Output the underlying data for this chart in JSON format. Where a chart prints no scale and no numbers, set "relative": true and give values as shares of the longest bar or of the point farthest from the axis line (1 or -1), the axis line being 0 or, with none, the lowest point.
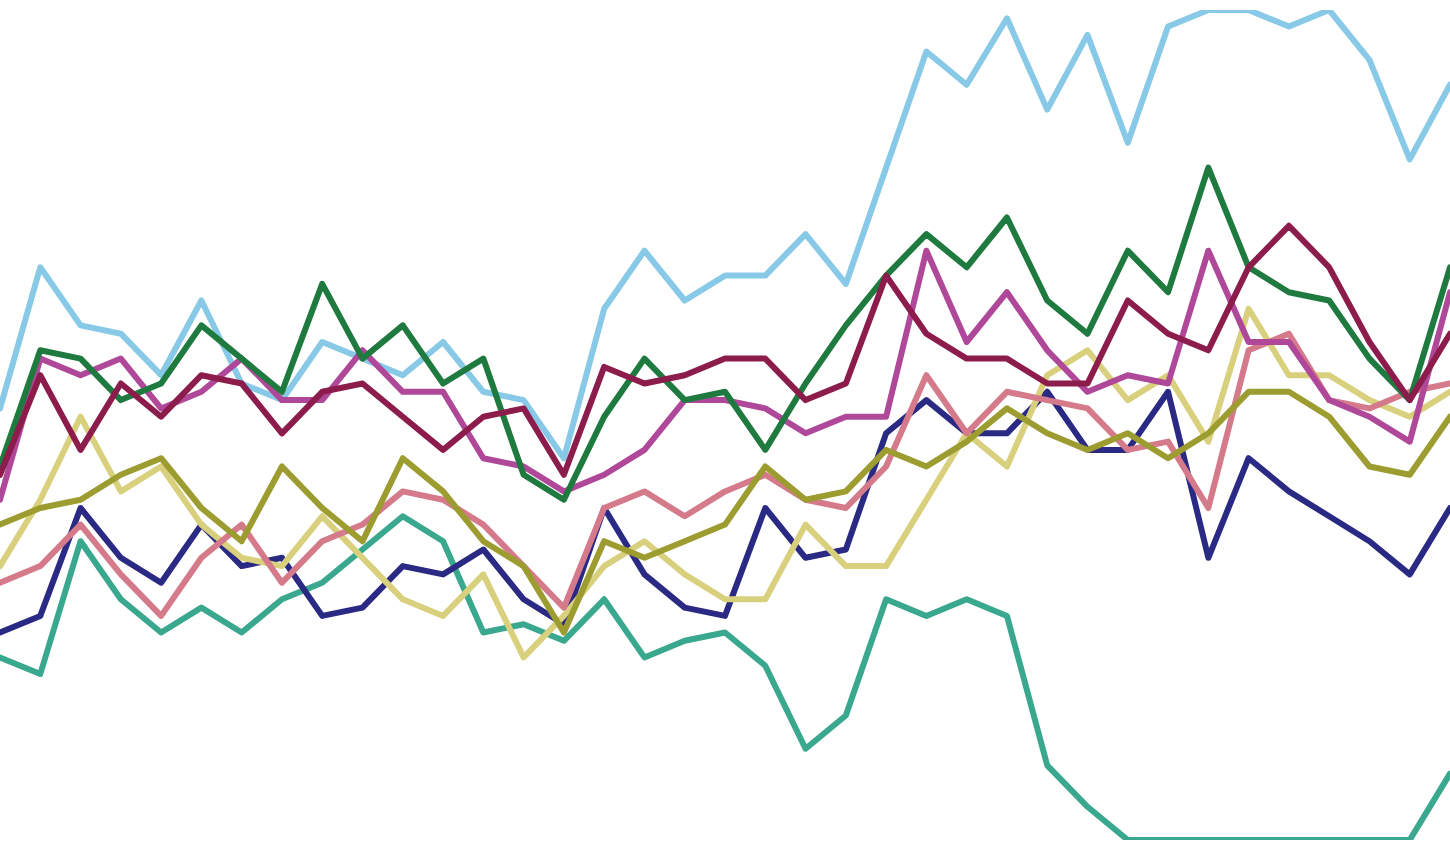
{
  "chart_data": {
    "type": "line",
    "relative": true,
    "categories": [
      null,
      null,
      null,
      null,
      null,
      null,
      null,
      null,
      null,
      null,
      null,
      null,
      null,
      null,
      null,
      null,
      null,
      null,
      null,
      null,
      null,
      null,
      null,
      null,
      null,
      null,
      null,
      null,
      null,
      null,
      null,
      null,
      null,
      null,
      null,
      null,
      null
    ],
    "series": [
      {
        "color": "#3aa88e",
        "values": [
          0.22,
          0.2,
          0.36,
          0.29,
          0.25,
          0.28,
          0.25,
          0.29,
          0.31,
          0.35,
          0.39,
          0.36,
          0.25,
          0.26,
          0.24,
          0.29,
          0.22,
          0.24,
          0.25,
          0.21,
          0.11,
          0.15,
          0.29,
          0.27,
          0.29,
          0.27,
          0.09,
          0.04,
          0,
          0,
          0,
          0,
          0,
          0,
          0,
          0,
          0.08
        ]
      },
      {
        "color": "#87c9e6",
        "values": [
          0.52,
          0.69,
          0.62,
          0.61,
          0.56,
          0.65,
          0.55,
          0.53,
          0.6,
          0.58,
          0.56,
          0.6,
          0.54,
          0.53,
          0.46,
          0.64,
          0.71,
          0.65,
          0.68,
          0.68,
          0.73,
          0.67,
          0.81,
          0.95,
          0.91,
          0.99,
          0.88,
          0.97,
          0.84,
          0.98,
          1,
          1,
          0.98,
          1,
          0.94,
          0.82,
          0.91
        ]
      },
      {
        "color": "#2a2a84",
        "values": [
          0.25,
          0.27,
          0.4,
          0.34,
          0.31,
          0.38,
          0.33,
          0.34,
          0.27,
          0.28,
          0.33,
          0.32,
          0.35,
          0.29,
          0.26,
          0.4,
          0.32,
          0.28,
          0.27,
          0.4,
          0.34,
          0.35,
          0.49,
          0.53,
          0.49,
          0.49,
          0.54,
          0.47,
          0.47,
          0.54,
          0.34,
          0.46,
          0.42,
          0.39,
          0.36,
          0.32,
          0.4
        ]
      },
      {
        "color": "#d8d07c",
        "values": [
          0.33,
          0.41,
          0.51,
          0.42,
          0.45,
          0.38,
          0.34,
          0.33,
          0.39,
          0.34,
          0.29,
          0.27,
          0.32,
          0.22,
          0.27,
          0.33,
          0.36,
          0.32,
          0.29,
          0.29,
          0.38,
          0.33,
          0.33,
          0.41,
          0.49,
          0.45,
          0.56,
          0.59,
          0.53,
          0.56,
          0.48,
          0.64,
          0.56,
          0.56,
          0.53,
          0.51,
          0.54
        ]
      },
      {
        "color": "#d47a8a",
        "values": [
          0.31,
          0.33,
          0.38,
          0.32,
          0.27,
          0.34,
          0.38,
          0.31,
          0.36,
          0.38,
          0.42,
          0.41,
          0.38,
          0.33,
          0.28,
          0.4,
          0.42,
          0.39,
          0.42,
          0.44,
          0.41,
          0.4,
          0.45,
          0.56,
          0.49,
          0.54,
          0.53,
          0.52,
          0.47,
          0.48,
          0.4,
          0.59,
          0.61,
          0.53,
          0.52,
          0.54,
          0.55
        ]
      },
      {
        "color": "#9c9c30",
        "values": [
          0.38,
          0.4,
          0.41,
          0.44,
          0.46,
          0.4,
          0.36,
          0.45,
          0.4,
          0.36,
          0.46,
          0.42,
          0.36,
          0.33,
          0.25,
          0.36,
          0.34,
          0.36,
          0.38,
          0.45,
          0.41,
          0.42,
          0.47,
          0.45,
          0.48,
          0.52,
          0.49,
          0.47,
          0.49,
          0.46,
          0.49,
          0.54,
          0.54,
          0.51,
          0.45,
          0.44,
          0.51
        ]
      },
      {
        "color": "#b0489a",
        "values": [
          0.41,
          0.58,
          0.56,
          0.58,
          0.52,
          0.54,
          0.58,
          0.53,
          0.53,
          0.59,
          0.54,
          0.54,
          0.46,
          0.45,
          0.42,
          0.44,
          0.47,
          0.53,
          0.53,
          0.52,
          0.49,
          0.51,
          0.51,
          0.71,
          0.6,
          0.66,
          0.59,
          0.54,
          0.56,
          0.55,
          0.71,
          0.6,
          0.6,
          0.53,
          0.51,
          0.48,
          0.66
        ]
      },
      {
        "color": "#1f7a3f",
        "values": [
          0.45,
          0.59,
          0.58,
          0.53,
          0.55,
          0.62,
          0.58,
          0.54,
          0.67,
          0.58,
          0.62,
          0.55,
          0.58,
          0.44,
          0.41,
          0.51,
          0.58,
          0.53,
          0.54,
          0.47,
          0.55,
          0.62,
          0.68,
          0.73,
          0.69,
          0.75,
          0.65,
          0.61,
          0.71,
          0.66,
          0.81,
          0.69,
          0.66,
          0.65,
          0.58,
          0.53,
          0.69
        ]
      },
      {
        "color": "#8c1c4c",
        "values": [
          0.44,
          0.56,
          0.47,
          0.55,
          0.51,
          0.56,
          0.55,
          0.49,
          0.54,
          0.55,
          0.51,
          0.47,
          0.51,
          0.52,
          0.44,
          0.57,
          0.55,
          0.56,
          0.58,
          0.58,
          0.53,
          0.55,
          0.68,
          0.61,
          0.58,
          0.58,
          0.55,
          0.55,
          0.65,
          0.61,
          0.59,
          0.69,
          0.74,
          0.69,
          0.6,
          0.53,
          0.61
        ]
      }
    ]
  }
}
